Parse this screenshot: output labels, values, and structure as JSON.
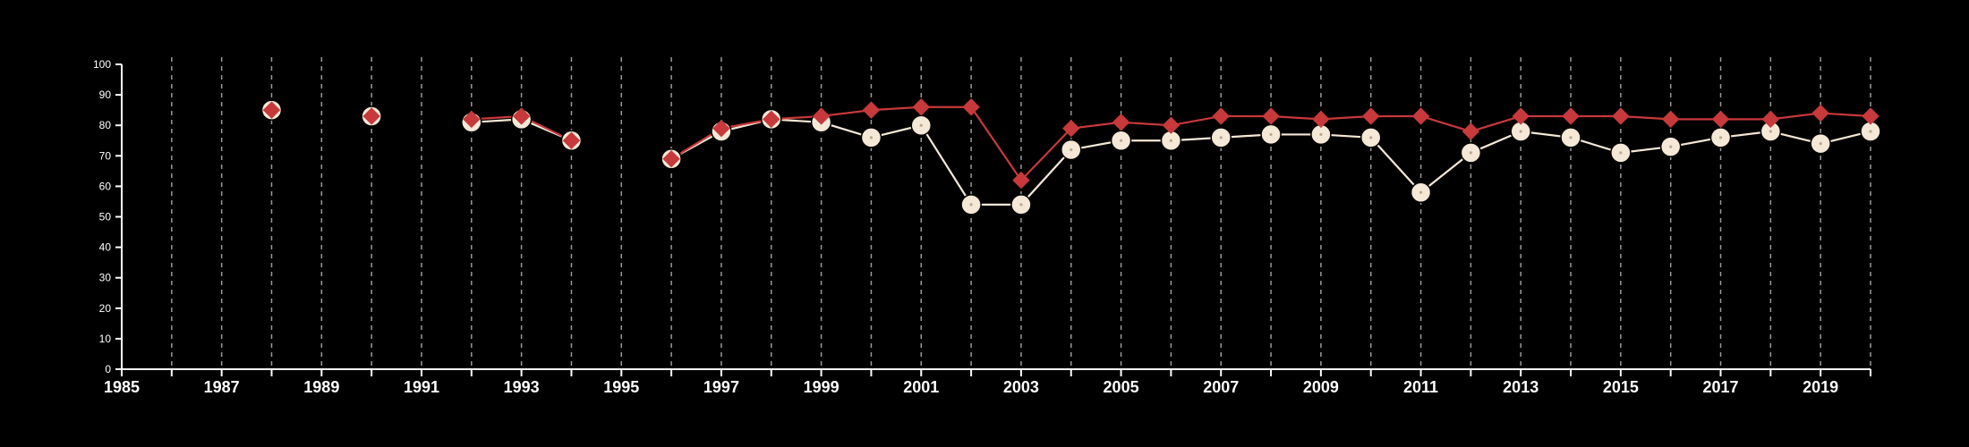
{
  "chart_data": {
    "type": "line",
    "title": "",
    "xlabel": "",
    "ylabel": "",
    "xlim": [
      1985,
      2020
    ],
    "ylim": [
      0,
      100
    ],
    "x_ticks": [
      "1985",
      "1987",
      "1989",
      "1991",
      "1993",
      "1995",
      "1997",
      "1999",
      "2001",
      "2003",
      "2005",
      "2007",
      "2009",
      "2011",
      "2013",
      "2015",
      "2017",
      "2019"
    ],
    "y_ticks": [
      "0",
      "10",
      "20",
      "30",
      "40",
      "50",
      "60",
      "70",
      "80",
      "90",
      "100"
    ],
    "grid": "vertical dashed at each year",
    "colors": {
      "background": "#000000",
      "axis": "#ffffff",
      "grid": "#9a9a9a",
      "series_red": "#c8393b",
      "series_cream": "#f5e8d6"
    },
    "series": [
      {
        "color": "#f5e8d6",
        "marker": "circle",
        "points": [
          [
            1988,
            85
          ],
          [
            1990,
            83
          ],
          [
            1992,
            81
          ],
          [
            1993,
            82
          ],
          [
            1994,
            75
          ],
          [
            1996,
            69
          ],
          [
            1997,
            78
          ],
          [
            1998,
            82
          ],
          [
            1999,
            81
          ],
          [
            2000,
            76
          ],
          [
            2001,
            80
          ],
          [
            2002,
            54
          ],
          [
            2003,
            54
          ],
          [
            2004,
            72
          ],
          [
            2005,
            75
          ],
          [
            2006,
            75
          ],
          [
            2007,
            76
          ],
          [
            2008,
            77
          ],
          [
            2009,
            77
          ],
          [
            2010,
            76
          ],
          [
            2011,
            58
          ],
          [
            2012,
            71
          ],
          [
            2013,
            78
          ],
          [
            2014,
            76
          ],
          [
            2015,
            71
          ],
          [
            2016,
            73
          ],
          [
            2017,
            76
          ],
          [
            2018,
            78
          ],
          [
            2019,
            74
          ],
          [
            2020,
            78
          ]
        ]
      },
      {
        "color": "#c8393b",
        "marker": "diamond",
        "points": [
          [
            1988,
            85
          ],
          [
            1990,
            83
          ],
          [
            1992,
            82
          ],
          [
            1993,
            83
          ],
          [
            1994,
            75
          ],
          [
            1996,
            69
          ],
          [
            1997,
            79
          ],
          [
            1998,
            82
          ],
          [
            1999,
            83
          ],
          [
            2000,
            85
          ],
          [
            2001,
            86
          ],
          [
            2002,
            86
          ],
          [
            2003,
            62
          ],
          [
            2004,
            79
          ],
          [
            2005,
            81
          ],
          [
            2006,
            80
          ],
          [
            2007,
            83
          ],
          [
            2008,
            83
          ],
          [
            2009,
            82
          ],
          [
            2010,
            83
          ],
          [
            2011,
            83
          ],
          [
            2012,
            78
          ],
          [
            2013,
            83
          ],
          [
            2014,
            83
          ],
          [
            2015,
            83
          ],
          [
            2016,
            82
          ],
          [
            2017,
            82
          ],
          [
            2018,
            82
          ],
          [
            2019,
            84
          ],
          [
            2020,
            83
          ]
        ]
      }
    ]
  }
}
